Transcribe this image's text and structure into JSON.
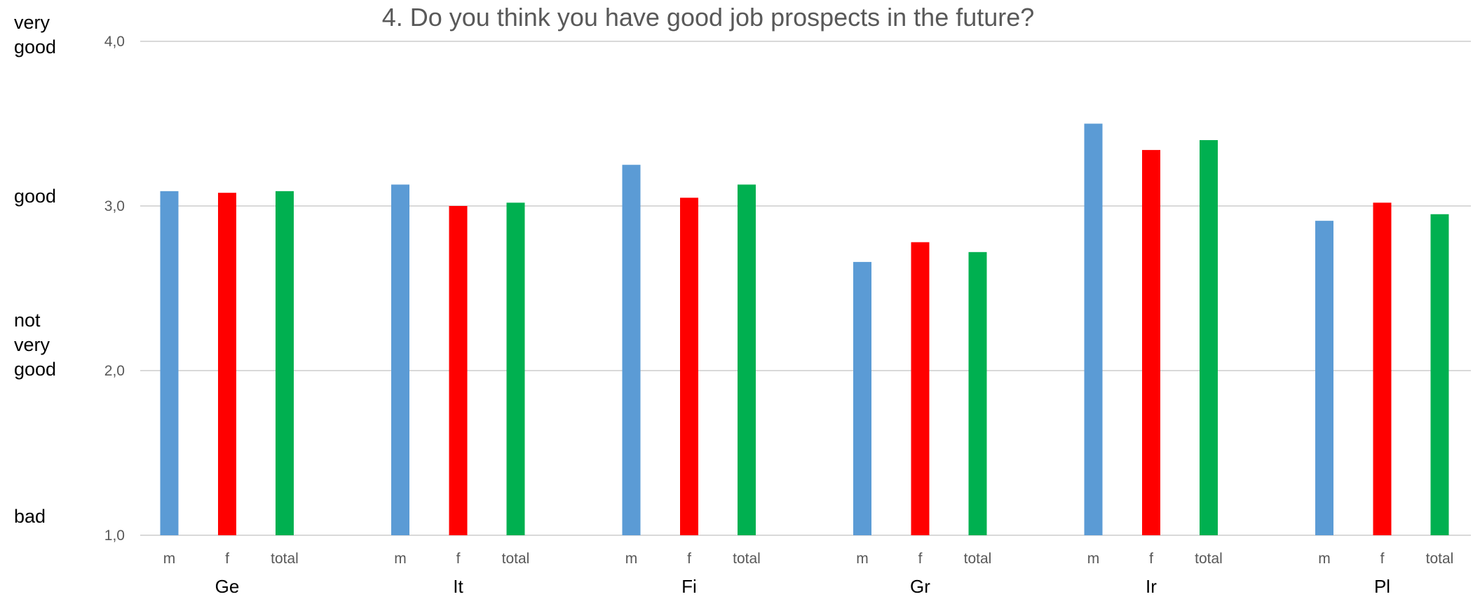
{
  "chart_data": {
    "type": "bar",
    "title": "4. Do you think you have good job prospects in the future?",
    "xlabel": "",
    "ylabel": "",
    "ylim": [
      1.0,
      4.0
    ],
    "yticks": [
      {
        "value": 1.0,
        "label": "1,0"
      },
      {
        "value": 2.0,
        "label": "2,0"
      },
      {
        "value": 3.0,
        "label": "3,0"
      },
      {
        "value": 4.0,
        "label": "4,0"
      }
    ],
    "rating_labels": [
      {
        "value": 4.0,
        "lines": [
          "very",
          "good"
        ]
      },
      {
        "value": 3.0,
        "lines": [
          "good"
        ]
      },
      {
        "value": 2.0,
        "lines": [
          "not",
          "very",
          "good"
        ]
      },
      {
        "value": 1.0,
        "lines": [
          "bad"
        ]
      }
    ],
    "grid": true,
    "legend": "none",
    "countries": [
      "Ge",
      "It",
      "Fi",
      "Gr",
      "Ir",
      "Pl"
    ],
    "bar_labels": [
      "m",
      "f",
      "total"
    ],
    "colors": {
      "m": "#5b9bd5",
      "f": "#ff0000",
      "total": "#00b050"
    },
    "series": [
      {
        "key": "m",
        "values": [
          3.09,
          3.13,
          3.25,
          2.66,
          3.5,
          2.91
        ]
      },
      {
        "key": "f",
        "values": [
          3.08,
          3.0,
          3.05,
          2.78,
          3.34,
          3.02
        ]
      },
      {
        "key": "total",
        "values": [
          3.09,
          3.02,
          3.13,
          2.72,
          3.4,
          2.95
        ]
      }
    ]
  }
}
